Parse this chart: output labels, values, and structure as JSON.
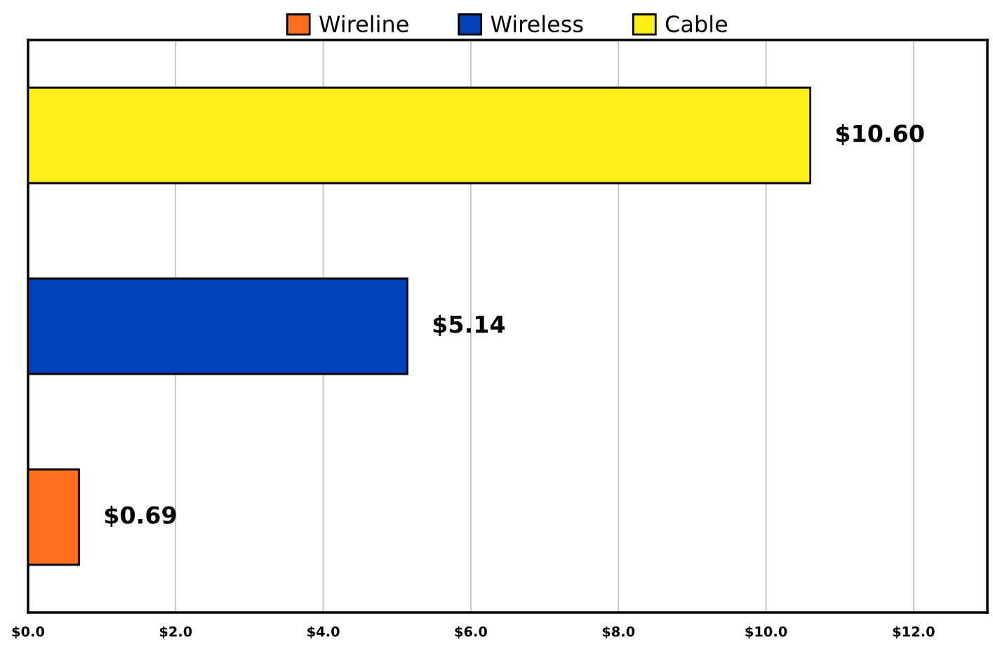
{
  "chart_data": {
    "type": "bar",
    "orientation": "horizontal",
    "categories": [
      null,
      null,
      null
    ],
    "series": [
      {
        "name": "Wireline",
        "color": "#ff6f1f",
        "values": [
          null,
          null,
          0.69
        ],
        "value_labels": [
          null,
          null,
          "$0.69"
        ]
      },
      {
        "name": "Wireless",
        "color": "#0040b8",
        "values": [
          null,
          5.14,
          null
        ],
        "value_labels": [
          null,
          "$5.14",
          null
        ]
      },
      {
        "name": "Cable",
        "color": "#fcef1a",
        "values": [
          10.6,
          null,
          null
        ],
        "value_labels": [
          "$10.60",
          null,
          null
        ]
      }
    ],
    "xlim": [
      0,
      13
    ],
    "xticks": [
      {
        "value": 0,
        "label": "$0.0"
      },
      {
        "value": 2,
        "label": "$2.0"
      },
      {
        "value": 4,
        "label": "$4.0"
      },
      {
        "value": 6,
        "label": "$6.0"
      },
      {
        "value": 8,
        "label": "$8.0"
      },
      {
        "value": 10,
        "label": "$10.0"
      },
      {
        "value": 12,
        "label": "$12.0"
      }
    ],
    "grid": "x",
    "legend": "top"
  }
}
